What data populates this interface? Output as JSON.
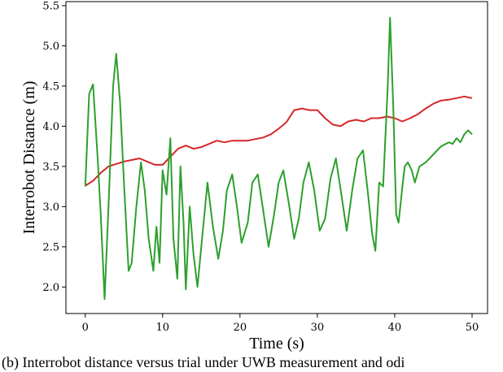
{
  "caption": "(b)  Interrobot distance versus trial under UWB measurement and odi",
  "chart_data": {
    "type": "line",
    "xlabel": "Time (s)",
    "ylabel": "Interrobot Distance (m)",
    "xlim": [
      -2.5,
      52
    ],
    "ylim": [
      1.67,
      5.55
    ],
    "xticks": [
      0,
      10,
      20,
      30,
      40,
      50
    ],
    "yticks": [
      2.0,
      2.5,
      3.0,
      3.5,
      4.0,
      4.5,
      5.0,
      5.5
    ],
    "grid": false,
    "series": [
      {
        "color": "#d62728",
        "points": [
          [
            0,
            3.26
          ],
          [
            1,
            3.32
          ],
          [
            2,
            3.42
          ],
          [
            3,
            3.5
          ],
          [
            4,
            3.53
          ],
          [
            5,
            3.56
          ],
          [
            6,
            3.58
          ],
          [
            7,
            3.6
          ],
          [
            8,
            3.56
          ],
          [
            9,
            3.52
          ],
          [
            10,
            3.52
          ],
          [
            11,
            3.62
          ],
          [
            12,
            3.72
          ],
          [
            13,
            3.76
          ],
          [
            14,
            3.72
          ],
          [
            15,
            3.74
          ],
          [
            16,
            3.78
          ],
          [
            17,
            3.82
          ],
          [
            18,
            3.8
          ],
          [
            19,
            3.82
          ],
          [
            20,
            3.82
          ],
          [
            21,
            3.82
          ],
          [
            22,
            3.84
          ],
          [
            23,
            3.86
          ],
          [
            24,
            3.9
          ],
          [
            25,
            3.97
          ],
          [
            26,
            4.05
          ],
          [
            27,
            4.2
          ],
          [
            28,
            4.22
          ],
          [
            29,
            4.2
          ],
          [
            30,
            4.2
          ],
          [
            31,
            4.1
          ],
          [
            32,
            4.02
          ],
          [
            33,
            4.0
          ],
          [
            34,
            4.06
          ],
          [
            35,
            4.08
          ],
          [
            36,
            4.06
          ],
          [
            37,
            4.1
          ],
          [
            38,
            4.1
          ],
          [
            39,
            4.12
          ],
          [
            40,
            4.1
          ],
          [
            41,
            4.06
          ],
          [
            42,
            4.1
          ],
          [
            43,
            4.15
          ],
          [
            44,
            4.22
          ],
          [
            45,
            4.28
          ],
          [
            46,
            4.32
          ],
          [
            47,
            4.33
          ],
          [
            48,
            4.35
          ],
          [
            49,
            4.37
          ],
          [
            50,
            4.35
          ]
        ]
      },
      {
        "color": "#2ca02c",
        "points": [
          [
            0,
            3.25
          ],
          [
            0.5,
            4.4
          ],
          [
            1,
            4.52
          ],
          [
            1.6,
            3.6
          ],
          [
            2,
            2.9
          ],
          [
            2.5,
            1.85
          ],
          [
            3,
            3.0
          ],
          [
            3.6,
            4.5
          ],
          [
            4,
            4.9
          ],
          [
            4.5,
            4.3
          ],
          [
            5,
            3.3
          ],
          [
            5.6,
            2.2
          ],
          [
            6,
            2.3
          ],
          [
            6.6,
            3.0
          ],
          [
            7.2,
            3.55
          ],
          [
            7.7,
            3.2
          ],
          [
            8.2,
            2.6
          ],
          [
            8.8,
            2.2
          ],
          [
            9.2,
            2.75
          ],
          [
            9.6,
            2.3
          ],
          [
            10,
            3.45
          ],
          [
            10.5,
            3.15
          ],
          [
            11,
            3.85
          ],
          [
            11.4,
            2.6
          ],
          [
            11.9,
            2.1
          ],
          [
            12.3,
            3.5
          ],
          [
            12.7,
            2.8
          ],
          [
            13,
            1.97
          ],
          [
            13.5,
            3.0
          ],
          [
            14,
            2.4
          ],
          [
            14.5,
            2.0
          ],
          [
            15.2,
            2.7
          ],
          [
            15.8,
            3.3
          ],
          [
            16.5,
            2.75
          ],
          [
            17.2,
            2.35
          ],
          [
            17.8,
            2.7
          ],
          [
            18.3,
            3.2
          ],
          [
            19,
            3.4
          ],
          [
            19.6,
            3.0
          ],
          [
            20.2,
            2.55
          ],
          [
            21,
            2.8
          ],
          [
            21.6,
            3.3
          ],
          [
            22.3,
            3.4
          ],
          [
            23,
            2.95
          ],
          [
            23.7,
            2.5
          ],
          [
            24.4,
            2.9
          ],
          [
            25,
            3.3
          ],
          [
            25.6,
            3.45
          ],
          [
            26.3,
            3.05
          ],
          [
            27,
            2.6
          ],
          [
            27.6,
            2.85
          ],
          [
            28.2,
            3.3
          ],
          [
            28.9,
            3.55
          ],
          [
            29.6,
            3.2
          ],
          [
            30.3,
            2.7
          ],
          [
            31,
            2.85
          ],
          [
            31.7,
            3.35
          ],
          [
            32.4,
            3.6
          ],
          [
            33.1,
            3.15
          ],
          [
            33.8,
            2.7
          ],
          [
            34.5,
            3.2
          ],
          [
            35.2,
            3.6
          ],
          [
            35.9,
            3.7
          ],
          [
            36.5,
            3.2
          ],
          [
            37.1,
            2.65
          ],
          [
            37.5,
            2.45
          ],
          [
            38,
            3.3
          ],
          [
            38.5,
            3.25
          ],
          [
            39.1,
            4.5
          ],
          [
            39.4,
            5.35
          ],
          [
            39.8,
            4.3
          ],
          [
            40.2,
            2.9
          ],
          [
            40.5,
            2.8
          ],
          [
            41,
            3.25
          ],
          [
            41.3,
            3.5
          ],
          [
            41.7,
            3.55
          ],
          [
            42.2,
            3.45
          ],
          [
            42.6,
            3.3
          ],
          [
            43.2,
            3.5
          ],
          [
            44,
            3.55
          ],
          [
            45,
            3.65
          ],
          [
            46,
            3.75
          ],
          [
            47,
            3.8
          ],
          [
            47.5,
            3.78
          ],
          [
            48,
            3.85
          ],
          [
            48.5,
            3.8
          ],
          [
            49,
            3.9
          ],
          [
            49.5,
            3.95
          ],
          [
            50,
            3.9
          ]
        ]
      }
    ]
  }
}
